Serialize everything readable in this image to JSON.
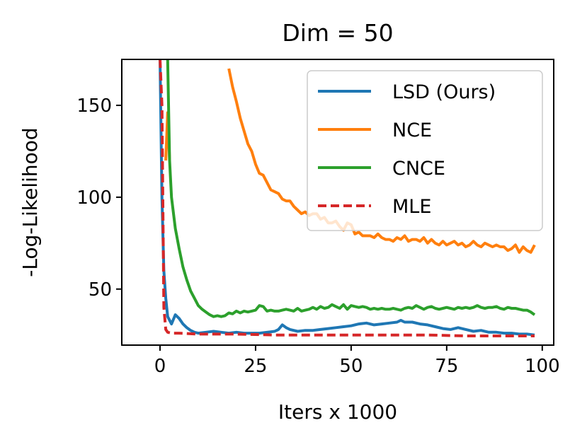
{
  "chart_data": {
    "type": "line",
    "title": "Dim = 50",
    "xlabel": "Iters x 1000",
    "ylabel": "-Log-Likelihood",
    "xlim": [
      -10,
      103
    ],
    "ylim": [
      19.5,
      175
    ],
    "xticks": [
      0,
      25,
      50,
      75,
      100
    ],
    "yticks": [
      50,
      100,
      150
    ],
    "xtick_labels": [
      "0",
      "25",
      "50",
      "75",
      "100"
    ],
    "ytick_labels": [
      "50",
      "100",
      "150"
    ],
    "grid": false,
    "legend_position": "top-right",
    "series": [
      {
        "name": "LSD (Ours)",
        "color": "#1f77b4",
        "style": "solid",
        "x": [
          0,
          0.5,
          1,
          1.5,
          2,
          3,
          4,
          5,
          6,
          7,
          8,
          9,
          10,
          12,
          14,
          16,
          18,
          20,
          22,
          24,
          26,
          28,
          30,
          31,
          32,
          33,
          34,
          36,
          38,
          40,
          42,
          44,
          46,
          48,
          50,
          52,
          54,
          56,
          58,
          60,
          62,
          63,
          64,
          66,
          68,
          70,
          72,
          74,
          76,
          78,
          80,
          82,
          84,
          86,
          88,
          90,
          92,
          94,
          96,
          98
        ],
        "y": [
          175,
          100,
          60,
          45,
          35,
          31,
          36,
          34,
          31,
          29,
          27.5,
          26.5,
          26,
          26.5,
          27,
          26.5,
          26,
          26.5,
          26,
          26,
          26,
          26.5,
          27,
          28,
          30.5,
          29,
          28,
          27,
          27.5,
          27.5,
          28,
          28.5,
          29,
          29.5,
          30,
          31,
          31.5,
          30.5,
          31,
          31.5,
          32,
          33,
          32,
          32,
          31,
          30.5,
          29.5,
          28.5,
          28,
          29,
          28,
          27,
          27.5,
          26.5,
          26.5,
          26,
          26,
          25.5,
          25.5,
          25
        ]
      },
      {
        "name": "NCE",
        "color": "#ff7f0e",
        "style": "solid",
        "segments": [
          {
            "x": [
              1.5,
              2,
              2.5
            ],
            "y": [
              120,
              146,
              120
            ]
          },
          {
            "x": [
              18,
              19,
              20,
              21,
              22,
              23,
              24,
              25,
              26,
              27,
              28,
              29,
              30,
              31,
              32,
              33,
              34,
              35,
              36,
              37,
              38,
              39,
              40,
              41,
              42,
              43,
              44,
              45,
              46,
              47,
              48,
              49,
              50,
              51,
              52,
              53,
              54,
              55,
              56,
              57,
              58,
              59,
              60,
              61,
              62,
              63,
              64,
              65,
              66,
              67,
              68,
              69,
              70,
              71,
              72,
              73,
              74,
              75,
              76,
              77,
              78,
              79,
              80,
              81,
              82,
              83,
              84,
              85,
              86,
              87,
              88,
              89,
              90,
              91,
              92,
              93,
              94,
              95,
              96,
              97,
              98
            ],
            "y": [
              170,
              160,
              152,
              143,
              136,
              129,
              125,
              118,
              113,
              112,
              108,
              104,
              103,
              102,
              99,
              98,
              98,
              95,
              93,
              91,
              92,
              90,
              91,
              91,
              88,
              89,
              86,
              86,
              87,
              84,
              82,
              86,
              85,
              80,
              81,
              79,
              79,
              79,
              78,
              80,
              78,
              77,
              77,
              76,
              78,
              77,
              79,
              76,
              77,
              77,
              76,
              78,
              75,
              77,
              75,
              74,
              76,
              74,
              75,
              76,
              74,
              75,
              73,
              74,
              76,
              74,
              73,
              75,
              74,
              73,
              74,
              73,
              73,
              71,
              72,
              74,
              70,
              73,
              71,
              70,
              74
            ]
          }
        ]
      },
      {
        "name": "CNCE",
        "color": "#2ca02c",
        "style": "solid",
        "x": [
          2,
          2.5,
          3,
          4,
          5,
          6,
          7,
          8,
          9,
          10,
          11,
          12,
          13,
          14,
          15,
          16,
          17,
          18,
          19,
          20,
          21,
          22,
          23,
          24,
          25,
          26,
          27,
          28,
          29,
          30,
          31,
          32,
          33,
          34,
          35,
          36,
          37,
          38,
          39,
          40,
          41,
          42,
          43,
          44,
          45,
          46,
          47,
          48,
          49,
          50,
          51,
          52,
          53,
          54,
          55,
          56,
          57,
          58,
          59,
          60,
          61,
          62,
          63,
          64,
          65,
          66,
          67,
          68,
          69,
          70,
          71,
          72,
          73,
          74,
          75,
          76,
          77,
          78,
          79,
          80,
          81,
          82,
          83,
          84,
          85,
          86,
          87,
          88,
          89,
          90,
          91,
          92,
          93,
          94,
          95,
          96,
          97,
          98
        ],
        "y": [
          175,
          120,
          100,
          83,
          72,
          62,
          55,
          49,
          45,
          41,
          39,
          37.5,
          36,
          35,
          35.5,
          35,
          35.5,
          37,
          36.5,
          38,
          37,
          38,
          37.5,
          38,
          38.5,
          41,
          40.5,
          38,
          38.5,
          38,
          38,
          38.5,
          39,
          38.5,
          38,
          39.5,
          38,
          38.5,
          39,
          40,
          39,
          40.5,
          39.5,
          40,
          41.5,
          40.5,
          39.5,
          41.5,
          39,
          41,
          40.5,
          40,
          40.5,
          40,
          39,
          39.5,
          39,
          39.5,
          39,
          39,
          39.5,
          39,
          38.5,
          39.5,
          40,
          39.5,
          41,
          40,
          39,
          40,
          40.5,
          39.5,
          39,
          39.5,
          40,
          39.5,
          39,
          40,
          39.5,
          40,
          39.5,
          40,
          41,
          40,
          39.5,
          40,
          40,
          40.5,
          39.5,
          39,
          40,
          39.5,
          39.5,
          39,
          38.5,
          38.5,
          37.5,
          36
        ]
      },
      {
        "name": "MLE",
        "color": "#d62728",
        "style": "dashed",
        "x": [
          0,
          0.5,
          1,
          1.5,
          2,
          3,
          5,
          10,
          20,
          30,
          40,
          50,
          60,
          70,
          80,
          90,
          98
        ],
        "y": [
          175,
          150,
          40,
          28,
          26.5,
          26,
          26,
          25.5,
          25.5,
          25,
          25,
          25,
          25,
          25,
          24.5,
          24.5,
          24.5
        ]
      }
    ]
  }
}
